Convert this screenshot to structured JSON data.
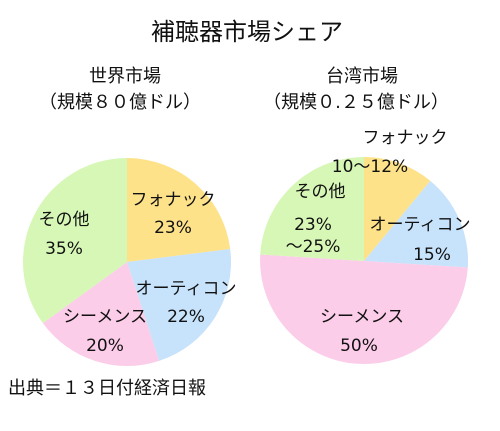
{
  "title": "補聴器市場シェア",
  "source": "出典＝１３日付経済日報",
  "colors": {
    "fonak": "#fde28a",
    "oticon": "#c7e2fb",
    "siemens": "#fbcde9",
    "other": "#d7f7b6"
  },
  "chart_data": [
    {
      "type": "pie",
      "title": "世界市場",
      "subtitle": "（規模８０億ドル）",
      "slices": [
        {
          "label": "フォナック",
          "value": 23,
          "value_label": "23%",
          "color_key": "fonak"
        },
        {
          "label": "オーティコン",
          "value": 22,
          "value_label": "22%",
          "color_key": "oticon"
        },
        {
          "label": "シーメンス",
          "value": 20,
          "value_label": "20%",
          "color_key": "siemens"
        },
        {
          "label": "その他",
          "value": 35,
          "value_label": "35%",
          "color_key": "other"
        }
      ]
    },
    {
      "type": "pie",
      "title": "台湾市場",
      "subtitle": "（規模０.２５億ドル）",
      "slices": [
        {
          "label": "フォナック",
          "value": 11,
          "value_label": "10～12%",
          "color_key": "fonak"
        },
        {
          "label": "オーティコン",
          "value": 15,
          "value_label": "15%",
          "color_key": "oticon"
        },
        {
          "label": "シーメンス",
          "value": 50,
          "value_label": "50%",
          "color_key": "siemens"
        },
        {
          "label": "その他",
          "value": 24,
          "value_label": "23%\n～25%",
          "color_key": "other"
        }
      ]
    }
  ]
}
